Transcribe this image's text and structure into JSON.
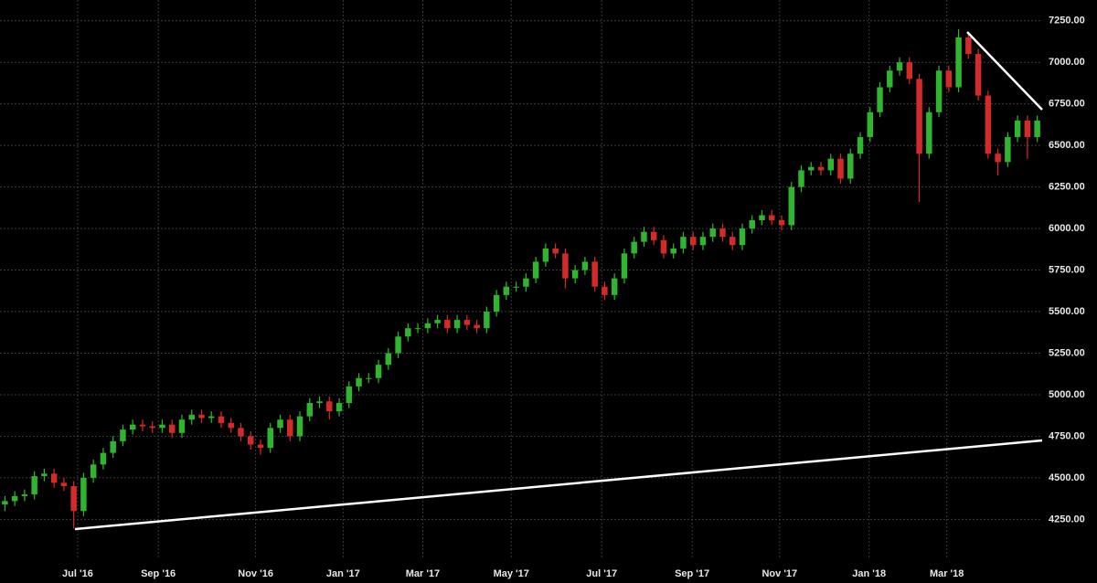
{
  "chart_data": {
    "type": "candlestick",
    "up_color": "#2fb52f",
    "down_color": "#d42a2a",
    "grid": true,
    "xlim": [
      0,
      106
    ],
    "xticks": [
      {
        "value": 7.9,
        "label": "Jul '16"
      },
      {
        "value": 16.1,
        "label": "Sep '16"
      },
      {
        "value": 26,
        "label": "Nov '16"
      },
      {
        "value": 34.9,
        "label": "Jan '17"
      },
      {
        "value": 43,
        "label": "Mar '17"
      },
      {
        "value": 52,
        "label": "May '17"
      },
      {
        "value": 61.2,
        "label": "Jul '17"
      },
      {
        "value": 70.4,
        "label": "Sep '17"
      },
      {
        "value": 79.3,
        "label": "Nov '17"
      },
      {
        "value": 88.4,
        "label": "Jan '18"
      },
      {
        "value": 96.3,
        "label": "Mar '18"
      }
    ],
    "ylim": [
      4010,
      7375
    ],
    "yticks": [
      {
        "value": 4250,
        "label": "4250.00"
      },
      {
        "value": 4500,
        "label": "4500.00"
      },
      {
        "value": 4750,
        "label": "4750.00"
      },
      {
        "value": 5000,
        "label": "5000.00"
      },
      {
        "value": 5250,
        "label": "5250.00"
      },
      {
        "value": 5500,
        "label": "5500.00"
      },
      {
        "value": 5750,
        "label": "5750.00"
      },
      {
        "value": 6000,
        "label": "6000.00"
      },
      {
        "value": 6250,
        "label": "6250.00"
      },
      {
        "value": 6500,
        "label": "6500.00"
      },
      {
        "value": 6750,
        "label": "6750.00"
      },
      {
        "value": 7000,
        "label": "7000.00"
      },
      {
        "value": 7250,
        "label": "7250.00"
      }
    ],
    "ohlc": [
      [
        4340,
        4390,
        4300,
        4360
      ],
      [
        4360,
        4420,
        4330,
        4390
      ],
      [
        4390,
        4430,
        4360,
        4400
      ],
      [
        4400,
        4540,
        4370,
        4510
      ],
      [
        4510,
        4555,
        4480,
        4525
      ],
      [
        4525,
        4555,
        4440,
        4470
      ],
      [
        4470,
        4500,
        4420,
        4450
      ],
      [
        4450,
        4480,
        4195,
        4300
      ],
      [
        4300,
        4530,
        4270,
        4500
      ],
      [
        4500,
        4610,
        4470,
        4580
      ],
      [
        4580,
        4680,
        4550,
        4650
      ],
      [
        4650,
        4750,
        4620,
        4720
      ],
      [
        4720,
        4820,
        4690,
        4790
      ],
      [
        4790,
        4850,
        4760,
        4820
      ],
      [
        4820,
        4850,
        4780,
        4810
      ],
      [
        4810,
        4840,
        4770,
        4800
      ],
      [
        4800,
        4850,
        4770,
        4820
      ],
      [
        4820,
        4850,
        4740,
        4770
      ],
      [
        4770,
        4880,
        4740,
        4850
      ],
      [
        4850,
        4910,
        4820,
        4880
      ],
      [
        4880,
        4910,
        4830,
        4860
      ],
      [
        4860,
        4900,
        4830,
        4870
      ],
      [
        4870,
        4900,
        4800,
        4830
      ],
      [
        4830,
        4860,
        4770,
        4800
      ],
      [
        4800,
        4830,
        4720,
        4750
      ],
      [
        4750,
        4780,
        4670,
        4700
      ],
      [
        4700,
        4730,
        4640,
        4680
      ],
      [
        4680,
        4830,
        4650,
        4800
      ],
      [
        4800,
        4880,
        4770,
        4850
      ],
      [
        4850,
        4880,
        4720,
        4750
      ],
      [
        4750,
        4900,
        4720,
        4870
      ],
      [
        4870,
        4980,
        4840,
        4950
      ],
      [
        4950,
        4990,
        4920,
        4960
      ],
      [
        4960,
        4990,
        4850,
        4900
      ],
      [
        4900,
        4980,
        4870,
        4950
      ],
      [
        4950,
        5080,
        4920,
        5050
      ],
      [
        5050,
        5130,
        5020,
        5100
      ],
      [
        5100,
        5130,
        5070,
        5100
      ],
      [
        5100,
        5210,
        5070,
        5180
      ],
      [
        5180,
        5280,
        5150,
        5250
      ],
      [
        5250,
        5380,
        5220,
        5350
      ],
      [
        5350,
        5430,
        5320,
        5400
      ],
      [
        5400,
        5430,
        5370,
        5400
      ],
      [
        5400,
        5460,
        5370,
        5430
      ],
      [
        5430,
        5480,
        5400,
        5450
      ],
      [
        5450,
        5480,
        5370,
        5400
      ],
      [
        5400,
        5480,
        5370,
        5450
      ],
      [
        5450,
        5480,
        5390,
        5420
      ],
      [
        5420,
        5450,
        5370,
        5400
      ],
      [
        5400,
        5530,
        5370,
        5500
      ],
      [
        5500,
        5630,
        5470,
        5600
      ],
      [
        5600,
        5680,
        5570,
        5650
      ],
      [
        5650,
        5680,
        5620,
        5650
      ],
      [
        5650,
        5730,
        5620,
        5700
      ],
      [
        5700,
        5830,
        5670,
        5800
      ],
      [
        5800,
        5910,
        5770,
        5880
      ],
      [
        5880,
        5910,
        5820,
        5850
      ],
      [
        5850,
        5880,
        5640,
        5700
      ],
      [
        5700,
        5780,
        5670,
        5750
      ],
      [
        5750,
        5830,
        5720,
        5800
      ],
      [
        5800,
        5830,
        5620,
        5650
      ],
      [
        5650,
        5680,
        5570,
        5600
      ],
      [
        5600,
        5730,
        5570,
        5700
      ],
      [
        5700,
        5880,
        5670,
        5850
      ],
      [
        5850,
        5950,
        5820,
        5920
      ],
      [
        5920,
        6010,
        5890,
        5980
      ],
      [
        5980,
        6010,
        5900,
        5930
      ],
      [
        5930,
        5960,
        5820,
        5850
      ],
      [
        5850,
        5910,
        5820,
        5880
      ],
      [
        5880,
        5980,
        5850,
        5950
      ],
      [
        5950,
        5980,
        5870,
        5900
      ],
      [
        5900,
        5980,
        5870,
        5950
      ],
      [
        5950,
        6030,
        5920,
        6000
      ],
      [
        6000,
        6030,
        5920,
        5950
      ],
      [
        5950,
        5980,
        5870,
        5900
      ],
      [
        5900,
        6030,
        5870,
        6000
      ],
      [
        6000,
        6080,
        5970,
        6050
      ],
      [
        6050,
        6110,
        6020,
        6080
      ],
      [
        6080,
        6110,
        6020,
        6050
      ],
      [
        6050,
        6080,
        5990,
        6020
      ],
      [
        6020,
        6280,
        5990,
        6250
      ],
      [
        6250,
        6380,
        6220,
        6350
      ],
      [
        6350,
        6400,
        6320,
        6370
      ],
      [
        6370,
        6400,
        6320,
        6350
      ],
      [
        6350,
        6450,
        6320,
        6420
      ],
      [
        6420,
        6450,
        6270,
        6300
      ],
      [
        6300,
        6480,
        6270,
        6450
      ],
      [
        6450,
        6580,
        6420,
        6550
      ],
      [
        6550,
        6730,
        6520,
        6700
      ],
      [
        6700,
        6880,
        6670,
        6850
      ],
      [
        6850,
        6980,
        6820,
        6950
      ],
      [
        6950,
        7030,
        6920,
        7000
      ],
      [
        7000,
        7030,
        6870,
        6900
      ],
      [
        6900,
        6930,
        6160,
        6450
      ],
      [
        6450,
        6730,
        6420,
        6700
      ],
      [
        6700,
        6980,
        6670,
        6950
      ],
      [
        6950,
        6980,
        6820,
        6850
      ],
      [
        6850,
        7200,
        6820,
        7150
      ],
      [
        7150,
        7180,
        7020,
        7050
      ],
      [
        7050,
        7080,
        6770,
        6800
      ],
      [
        6800,
        6830,
        6420,
        6450
      ],
      [
        6450,
        6480,
        6320,
        6400
      ],
      [
        6400,
        6580,
        6370,
        6550
      ],
      [
        6550,
        6680,
        6520,
        6650
      ],
      [
        6650,
        6680,
        6420,
        6550
      ],
      [
        6550,
        6680,
        6520,
        6650
      ]
    ]
  }
}
